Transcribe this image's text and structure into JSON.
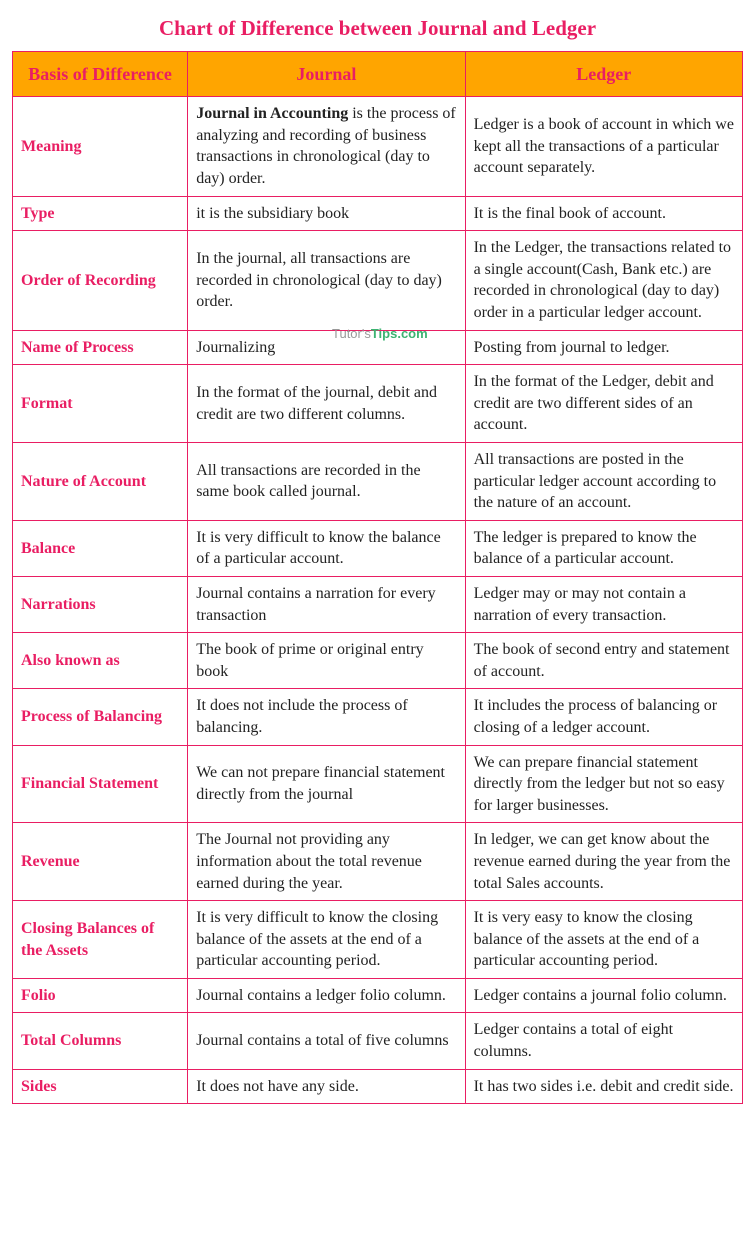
{
  "title": "Chart of Difference between Journal and Ledger",
  "headers": {
    "basis": "Basis of Difference",
    "journal": "Journal",
    "ledger": "Ledger"
  },
  "watermark": {
    "prefix": "Tutor's",
    "suffix": "Tips.com"
  },
  "rows": [
    {
      "basis": "Meaning",
      "journal_bold": "Journal in Accounting",
      "journal_rest": " is the process of analyzing and recording of business transactions in chronological (day to day) order.",
      "ledger": "Ledger is a book of account in which we kept all the transactions of a particular account separately."
    },
    {
      "basis": "Type",
      "journal": "it is the subsidiary book",
      "ledger": "It is the final book of account."
    },
    {
      "basis": "Order of Recording",
      "journal": "In the journal, all transactions are recorded in chronological (day to day) order.",
      "ledger": "In the Ledger, the transactions related to a single account(Cash, Bank etc.) are recorded in chronological (day to day) order in a particular ledger account."
    },
    {
      "basis": "Name of Process",
      "journal": "Journalizing",
      "ledger": "Posting from journal to ledger."
    },
    {
      "basis": "Format",
      "journal": "In the format of the journal, debit and credit are two different columns.",
      "ledger": "In the format of the Ledger, debit and credit are two different sides of an account."
    },
    {
      "basis": "Nature of Account",
      "journal": "All transactions are recorded in the same book called journal.",
      "ledger": "All transactions are posted in the particular ledger account according to the nature of an account."
    },
    {
      "basis": "Balance",
      "journal": "It is very difficult to know the balance of a particular account.",
      "ledger": "The ledger is prepared to know the balance of a particular account."
    },
    {
      "basis": "Narrations",
      "journal": "Journal contains a narration for every transaction",
      "ledger": "Ledger may or may not contain a narration of every transaction."
    },
    {
      "basis": "Also known as",
      "journal": "The book of prime or original entry book",
      "ledger": "The book of second entry and statement of account."
    },
    {
      "basis": "Process of Balancing",
      "journal": "It does not include the process of balancing.",
      "ledger": "It includes the process of balancing or closing of a ledger account."
    },
    {
      "basis": "Financial Statement",
      "journal": "We can not prepare financial statement directly from the journal",
      "ledger": "We can prepare financial statement directly from the ledger but not so easy for larger businesses."
    },
    {
      "basis": "Revenue",
      "journal": "The Journal not providing any information about the total revenue earned during the year.",
      "ledger": "In ledger, we can get know about the revenue earned during the year from the total Sales accounts."
    },
    {
      "basis": "Closing Balances of the Assets",
      "journal": "It is very difficult to know the closing balance of the assets at the end of a particular accounting period.",
      "ledger": "It is very easy to know the closing balance of the assets at the end of a particular accounting period."
    },
    {
      "basis": "Folio",
      "journal": "Journal contains a ledger folio column.",
      "ledger": "Ledger contains a journal folio column."
    },
    {
      "basis": "Total Columns",
      "journal": "Journal contains a total of five columns",
      "ledger": "Ledger contains a total of eight columns."
    },
    {
      "basis": "Sides",
      "journal": "It does not have any side.",
      "ledger": "It has two sides i.e. debit and credit side."
    }
  ]
}
